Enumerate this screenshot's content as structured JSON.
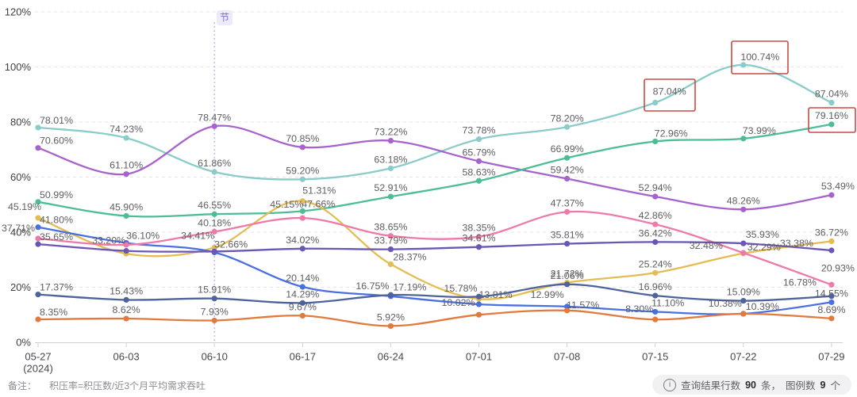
{
  "chart_data": {
    "type": "line",
    "title": "",
    "x_categories": [
      "05-27",
      "06-03",
      "06-10",
      "06-17",
      "06-24",
      "07-01",
      "07-08",
      "07-15",
      "07-22",
      "07-29"
    ],
    "x_first_sub_label": "(2024)",
    "y_tick_labels": [
      "0%",
      "20%",
      "40%",
      "60%",
      "80%",
      "100%",
      "120%"
    ],
    "ylim": [
      0,
      120
    ],
    "grid": "horizontal-dashed",
    "legend_position": "none",
    "event_marker": {
      "label": "节",
      "x_category": "06-10"
    },
    "series": [
      {
        "id": "teal",
        "color": "#8accc9",
        "values": [
          78.01,
          74.23,
          61.86,
          59.2,
          63.18,
          73.78,
          78.2,
          87.04,
          100.74,
          87.04
        ],
        "labels": [
          "78.01%",
          "74.23%",
          "61.86%",
          "59.20%",
          "63.18%",
          "73.78%",
          "78.20%",
          "87.04%",
          "100.74%",
          "87.04%"
        ]
      },
      {
        "id": "purple",
        "color": "#a763cb",
        "values": [
          70.6,
          61.1,
          78.47,
          70.85,
          73.22,
          65.79,
          59.42,
          52.94,
          48.26,
          53.49
        ],
        "labels": [
          "70.60%",
          "61.10%",
          "78.47%",
          "70.85%",
          "73.22%",
          "65.79%",
          "59.42%",
          "52.94%",
          "48.26%",
          "53.49%"
        ]
      },
      {
        "id": "green",
        "color": "#4dbd96",
        "values": [
          50.99,
          45.9,
          46.55,
          47.66,
          52.91,
          58.63,
          66.99,
          72.96,
          73.99,
          79.16
        ],
        "labels": [
          "50.99%",
          "45.90%",
          "46.55%",
          "47.66%",
          "52.91%",
          "58.63%",
          "66.99%",
          "72.96%",
          "73.99%",
          "79.16%"
        ]
      },
      {
        "id": "yellow",
        "color": "#e4bd52",
        "values": [
          45.19,
          32.2,
          34.41,
          51.31,
          28.37,
          15.78,
          21.72,
          25.24,
          32.29,
          36.72
        ],
        "labels": [
          "45.19%",
          null,
          "34.41%",
          "51.31%",
          "28.37%",
          "15.78%",
          "21.72%",
          "25.24%",
          "32.29%",
          "36.72%"
        ]
      },
      {
        "id": "royal",
        "color": "#4a6fe3",
        "values": [
          41.8,
          36.1,
          32.66,
          20.14,
          16.75,
          13.81,
          12.99,
          11.1,
          10.38,
          14.55
        ],
        "labels": [
          "41.80%",
          "36.10%",
          "32.66%",
          "20.14%",
          "16.75%",
          "13.81%",
          "12.99%",
          "11.10%",
          "10.38%",
          "14.55%"
        ]
      },
      {
        "id": "pink",
        "color": "#ee7aa9",
        "values": [
          37.71,
          35.4,
          40.18,
          45.15,
          38.65,
          38.35,
          47.37,
          42.86,
          32.48,
          20.93
        ],
        "labels": [
          "37.71%",
          null,
          "40.18%",
          "45.15%",
          "38.65%",
          "38.35%",
          "47.37%",
          "42.86%",
          "32.48%",
          "20.93%"
        ]
      },
      {
        "id": "indigo",
        "color": "#6a57b5",
        "values": [
          35.65,
          33.2,
          33.0,
          34.02,
          33.79,
          34.61,
          35.81,
          36.42,
          35.93,
          33.38
        ],
        "labels": [
          "35.65%",
          "33.20%",
          null,
          "34.02%",
          "33.79%",
          "34.61%",
          "35.81%",
          "36.42%",
          "35.93%",
          "33.38%"
        ]
      },
      {
        "id": "navy",
        "color": "#4e639c",
        "values": [
          17.37,
          15.43,
          15.91,
          14.29,
          17.19,
          16.6,
          21.06,
          16.96,
          15.09,
          16.78
        ],
        "labels": [
          "17.37%",
          "15.43%",
          "15.91%",
          "14.29%",
          "17.19%",
          null,
          "21.06%",
          "16.96%",
          "15.09%",
          "16.78%"
        ]
      },
      {
        "id": "orange",
        "color": "#e2793d",
        "values": [
          8.35,
          8.62,
          7.93,
          9.67,
          5.92,
          10.02,
          11.57,
          8.3,
          10.39,
          8.69
        ],
        "labels": [
          "8.35%",
          "8.62%",
          "7.93%",
          "9.67%",
          "5.92%",
          "10.02%",
          "11.57%",
          "8.30%",
          "10.39%",
          "8.69%"
        ]
      }
    ],
    "highlight_boxes": [
      {
        "series": "teal",
        "x_category": "07-15",
        "value_label": "87.04%"
      },
      {
        "series": "teal",
        "x_category": "07-22",
        "value_label": "100.74%"
      },
      {
        "series": "green",
        "x_category": "07-29",
        "value_label": "79.16%"
      }
    ],
    "highlight_box_color": "#cb4a42"
  },
  "footer": {
    "note_label": "备注：",
    "note_text": "积压率=积压数/近3个月平均需求吞吐",
    "result_info": {
      "icon": "info-circle-icon",
      "prefix": "查询结果行数",
      "rows_count": "90",
      "rows_suffix": "条，",
      "legend_label": "图例数",
      "legend_count": "9",
      "legend_suffix": "个"
    }
  }
}
